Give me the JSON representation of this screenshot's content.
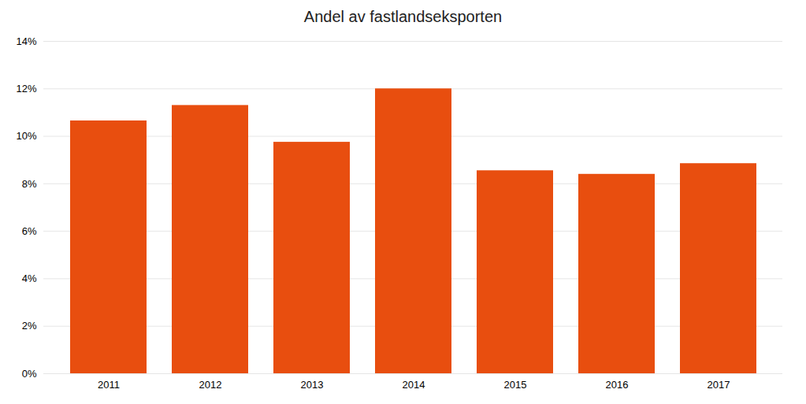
{
  "chart_data": {
    "type": "bar",
    "title": "Andel av fastlandseksporten",
    "categories": [
      "2011",
      "2012",
      "2013",
      "2014",
      "2015",
      "2016",
      "2017"
    ],
    "values": [
      10.65,
      11.3,
      9.75,
      12.0,
      8.55,
      8.4,
      8.85
    ],
    "color": "#E84E0F",
    "ylim": [
      0,
      14
    ],
    "yticks": [
      {
        "value": 0,
        "label": "0%"
      },
      {
        "value": 2,
        "label": "2%"
      },
      {
        "value": 4,
        "label": "4%"
      },
      {
        "value": 6,
        "label": "6%"
      },
      {
        "value": 8,
        "label": "8%"
      },
      {
        "value": 10,
        "label": "10%"
      },
      {
        "value": 12,
        "label": "12%"
      },
      {
        "value": 14,
        "label": "14%"
      }
    ],
    "grid": true
  }
}
